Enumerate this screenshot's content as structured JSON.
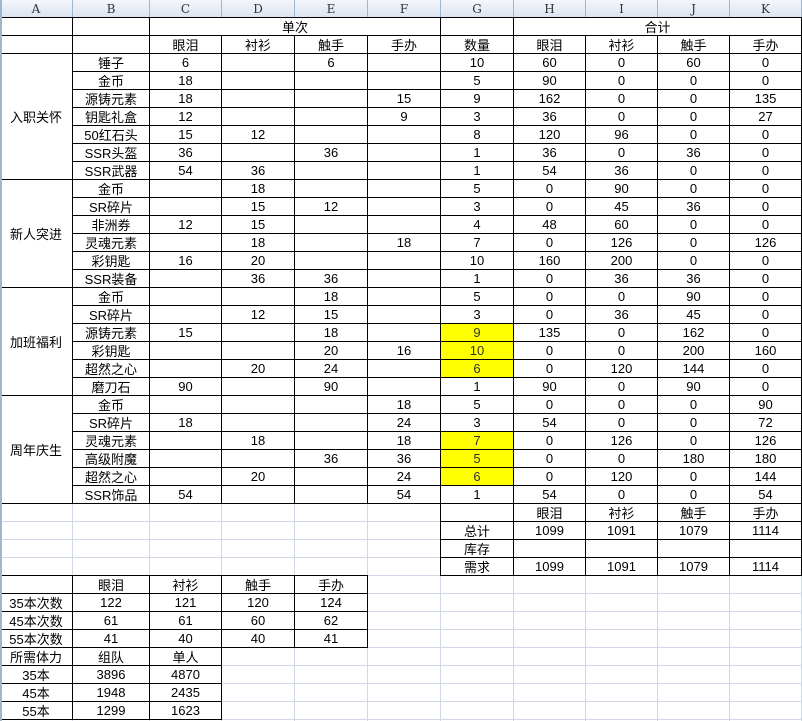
{
  "column_headers": [
    "A",
    "B",
    "C",
    "D",
    "E",
    "F",
    "G",
    "H",
    "I",
    "J",
    "K"
  ],
  "highlight_color": "#ffff00",
  "main_table": {
    "single_header": "单次",
    "total_header": "合计",
    "quantity_header": "数量",
    "columns": [
      "眼泪",
      "衬衫",
      "触手",
      "手办"
    ],
    "sections": [
      {
        "name": "入职关怀",
        "items": [
          {
            "name": "锤子",
            "single": [
              "6",
              "",
              "6",
              ""
            ],
            "qty": "10",
            "total": [
              "60",
              "0",
              "60",
              "0"
            ],
            "highlight": false
          },
          {
            "name": "金币",
            "single": [
              "18",
              "",
              "",
              ""
            ],
            "qty": "5",
            "total": [
              "90",
              "0",
              "0",
              "0"
            ],
            "highlight": false
          },
          {
            "name": "源铸元素",
            "single": [
              "18",
              "",
              "",
              "15"
            ],
            "qty": "9",
            "total": [
              "162",
              "0",
              "0",
              "135"
            ],
            "highlight": false
          },
          {
            "name": "钥匙礼盒",
            "single": [
              "12",
              "",
              "",
              "9"
            ],
            "qty": "3",
            "total": [
              "36",
              "0",
              "0",
              "27"
            ],
            "highlight": false
          },
          {
            "name": "50红石头",
            "single": [
              "15",
              "12",
              "",
              ""
            ],
            "qty": "8",
            "total": [
              "120",
              "96",
              "0",
              "0"
            ],
            "highlight": false
          },
          {
            "name": "SSR头盔",
            "single": [
              "36",
              "",
              "36",
              ""
            ],
            "qty": "1",
            "total": [
              "36",
              "0",
              "36",
              "0"
            ],
            "highlight": false
          },
          {
            "name": "SSR武器",
            "single": [
              "54",
              "36",
              "",
              ""
            ],
            "qty": "1",
            "total": [
              "54",
              "36",
              "0",
              "0"
            ],
            "highlight": false
          }
        ]
      },
      {
        "name": "新人突进",
        "items": [
          {
            "name": "金币",
            "single": [
              "",
              "18",
              "",
              ""
            ],
            "qty": "5",
            "total": [
              "0",
              "90",
              "0",
              "0"
            ],
            "highlight": false
          },
          {
            "name": "SR碎片",
            "single": [
              "",
              "15",
              "12",
              ""
            ],
            "qty": "3",
            "total": [
              "0",
              "45",
              "36",
              "0"
            ],
            "highlight": false
          },
          {
            "name": "非洲券",
            "single": [
              "12",
              "15",
              "",
              ""
            ],
            "qty": "4",
            "total": [
              "48",
              "60",
              "0",
              "0"
            ],
            "highlight": false
          },
          {
            "name": "灵魂元素",
            "single": [
              "",
              "18",
              "",
              "18"
            ],
            "qty": "7",
            "total": [
              "0",
              "126",
              "0",
              "126"
            ],
            "highlight": false
          },
          {
            "name": "彩钥匙",
            "single": [
              "16",
              "20",
              "",
              ""
            ],
            "qty": "10",
            "total": [
              "160",
              "200",
              "0",
              "0"
            ],
            "highlight": false
          },
          {
            "name": "SSR装备",
            "single": [
              "",
              "36",
              "36",
              ""
            ],
            "qty": "1",
            "total": [
              "0",
              "36",
              "36",
              "0"
            ],
            "highlight": false
          }
        ]
      },
      {
        "name": "加班福利",
        "items": [
          {
            "name": "金币",
            "single": [
              "",
              "",
              "18",
              ""
            ],
            "qty": "5",
            "total": [
              "0",
              "0",
              "90",
              "0"
            ],
            "highlight": false
          },
          {
            "name": "SR碎片",
            "single": [
              "",
              "12",
              "15",
              ""
            ],
            "qty": "3",
            "total": [
              "0",
              "36",
              "45",
              "0"
            ],
            "highlight": false
          },
          {
            "name": "源铸元素",
            "single": [
              "15",
              "",
              "18",
              ""
            ],
            "qty": "9",
            "total": [
              "135",
              "0",
              "162",
              "0"
            ],
            "highlight": true
          },
          {
            "name": "彩钥匙",
            "single": [
              "",
              "",
              "20",
              "16"
            ],
            "qty": "10",
            "total": [
              "0",
              "0",
              "200",
              "160"
            ],
            "highlight": true
          },
          {
            "name": "超然之心",
            "single": [
              "",
              "20",
              "24",
              ""
            ],
            "qty": "6",
            "total": [
              "0",
              "120",
              "144",
              "0"
            ],
            "highlight": true
          },
          {
            "name": "磨刀石",
            "single": [
              "90",
              "",
              "90",
              ""
            ],
            "qty": "1",
            "total": [
              "90",
              "0",
              "90",
              "0"
            ],
            "highlight": false
          }
        ]
      },
      {
        "name": "周年庆生",
        "items": [
          {
            "name": "金币",
            "single": [
              "",
              "",
              "",
              "18"
            ],
            "qty": "5",
            "total": [
              "0",
              "0",
              "0",
              "90"
            ],
            "highlight": false
          },
          {
            "name": "SR碎片",
            "single": [
              "18",
              "",
              "",
              "24"
            ],
            "qty": "3",
            "total": [
              "54",
              "0",
              "0",
              "72"
            ],
            "highlight": false
          },
          {
            "name": "灵魂元素",
            "single": [
              "",
              "18",
              "",
              "18"
            ],
            "qty": "7",
            "total": [
              "0",
              "126",
              "0",
              "126"
            ],
            "highlight": true
          },
          {
            "name": "高级附魔",
            "single": [
              "",
              "",
              "36",
              "36"
            ],
            "qty": "5",
            "total": [
              "0",
              "0",
              "180",
              "180"
            ],
            "highlight": true
          },
          {
            "name": "超然之心",
            "single": [
              "",
              "20",
              "",
              "24"
            ],
            "qty": "6",
            "total": [
              "0",
              "120",
              "0",
              "144"
            ],
            "highlight": true
          },
          {
            "name": "SSR饰品",
            "single": [
              "54",
              "",
              "",
              "54"
            ],
            "qty": "1",
            "total": [
              "54",
              "0",
              "0",
              "54"
            ],
            "highlight": false
          }
        ]
      }
    ]
  },
  "summary": {
    "columns": [
      "眼泪",
      "衬衫",
      "触手",
      "手办"
    ],
    "rows": [
      {
        "label": "总计",
        "values": [
          "1099",
          "1091",
          "1079",
          "1114"
        ]
      },
      {
        "label": "库存",
        "values": [
          "",
          "",
          "",
          ""
        ]
      },
      {
        "label": "需求",
        "values": [
          "1099",
          "1091",
          "1079",
          "1114"
        ]
      }
    ]
  },
  "runs_table": {
    "columns": [
      "眼泪",
      "衬衫",
      "触手",
      "手办"
    ],
    "rows": [
      {
        "label": "35本次数",
        "values": [
          "122",
          "121",
          "120",
          "124"
        ]
      },
      {
        "label": "45本次数",
        "values": [
          "61",
          "61",
          "60",
          "62"
        ]
      },
      {
        "label": "55本次数",
        "values": [
          "41",
          "40",
          "40",
          "41"
        ]
      }
    ]
  },
  "stamina_table": {
    "header": "所需体力",
    "columns": [
      "组队",
      "单人"
    ],
    "rows": [
      {
        "label": "35本",
        "values": [
          "3896",
          "4870"
        ]
      },
      {
        "label": "45本",
        "values": [
          "1948",
          "2435"
        ]
      },
      {
        "label": "55本",
        "values": [
          "1299",
          "1623"
        ]
      }
    ]
  }
}
